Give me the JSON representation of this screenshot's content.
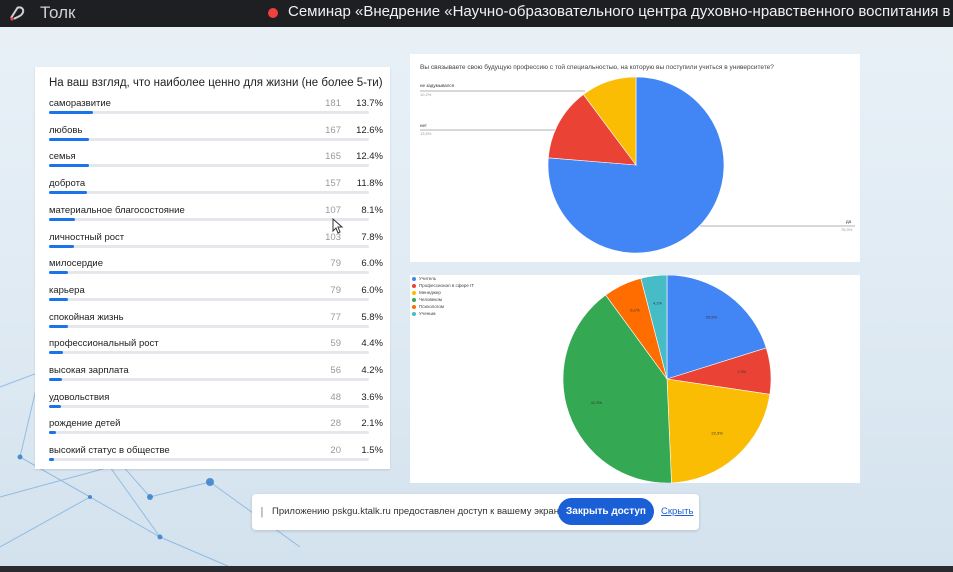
{
  "app": {
    "name": "Толк",
    "meeting_title": "Семинар «Внедрение «Научно-образовательного центра духовно-нравственного воспитания в"
  },
  "list_card": {
    "heading": "На ваш взгляд, что наиболее ценно для жизни (не более 5-ти)",
    "items": [
      {
        "label": "саморазвитие",
        "count": "181",
        "percent": "13.7%",
        "share": 13.7
      },
      {
        "label": "любовь",
        "count": "167",
        "percent": "12.6%",
        "share": 12.6
      },
      {
        "label": "семья",
        "count": "165",
        "percent": "12.4%",
        "share": 12.4
      },
      {
        "label": "доброта",
        "count": "157",
        "percent": "11.8%",
        "share": 11.8
      },
      {
        "label": "материальное благосостояние",
        "count": "107",
        "percent": "8.1%",
        "share": 8.1
      },
      {
        "label": "личностный рост",
        "count": "103",
        "percent": "7.8%",
        "share": 7.8
      },
      {
        "label": "милосердие",
        "count": "79",
        "percent": "6.0%",
        "share": 6.0
      },
      {
        "label": "карьера",
        "count": "79",
        "percent": "6.0%",
        "share": 6.0
      },
      {
        "label": "спокойная жизнь",
        "count": "77",
        "percent": "5.8%",
        "share": 5.8
      },
      {
        "label": "профессиональный рост",
        "count": "59",
        "percent": "4.4%",
        "share": 4.4
      },
      {
        "label": "высокая зарплата",
        "count": "56",
        "percent": "4.2%",
        "share": 4.2
      },
      {
        "label": "удовольствия",
        "count": "48",
        "percent": "3.6%",
        "share": 3.6
      },
      {
        "label": "рождение детей",
        "count": "28",
        "percent": "2.1%",
        "share": 2.1
      },
      {
        "label": "высокий статус в обществе",
        "count": "20",
        "percent": "1.5%",
        "share": 1.5
      }
    ]
  },
  "pie1": {
    "question": "Вы связываете свою будущую профессию с той специальностью, на которую вы поступили учиться в университете?",
    "labels": [
      {
        "name": "не задумывался",
        "value": "10,2%"
      },
      {
        "name": "нет",
        "value": "13,5%"
      },
      {
        "name": "да",
        "value": "76,3%"
      }
    ]
  },
  "pie2": {
    "legend": [
      "Учитель",
      "Профессионал в сфере IT",
      "Менеджер",
      "Человеком",
      "Психологом",
      "Ученым"
    ],
    "slice_labels": [
      "20,5%",
      "7,3%",
      "22,3%",
      "41,3%",
      "6,1%",
      "4,1%"
    ]
  },
  "chart_data": [
    {
      "type": "pie",
      "categories": [
        "да",
        "нет",
        "не задумывался"
      ],
      "values": [
        76.3,
        13.5,
        10.2
      ],
      "colors": [
        "#4285f4",
        "#ea4335",
        "#fbbc04"
      ]
    },
    {
      "type": "pie",
      "categories": [
        "Учитель",
        "Профессионал в сфере IT",
        "Менеджер",
        "Человеком",
        "Психологом",
        "Ученым"
      ],
      "values": [
        20.5,
        7.3,
        22.3,
        41.3,
        6.1,
        4.1
      ],
      "colors": [
        "#4285f4",
        "#ea4335",
        "#fbbc04",
        "#34a853",
        "#ff6d01",
        "#46bdc6"
      ]
    }
  ],
  "share_bar": {
    "message": "Приложению pskgu.ktalk.ru предоставлен доступ к вашему экрану.",
    "stop_label": "Закрыть доступ",
    "hide_label": "Скрыть"
  }
}
